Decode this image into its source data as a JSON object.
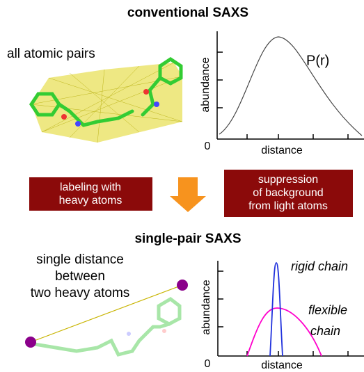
{
  "top": {
    "title": "conventional SAXS",
    "label": "all atomic pairs",
    "plot": {
      "y_label": "abundance",
      "x_label": "distance",
      "origin": "0",
      "curve_label": "P(r)"
    }
  },
  "arrows": {
    "left_box": [
      "labeling with",
      "heavy atoms"
    ],
    "right_box": [
      "suppression",
      "of background",
      "from light atoms"
    ]
  },
  "bottom": {
    "title": "single-pair SAXS",
    "label": [
      "single distance",
      "between",
      "two heavy atoms"
    ],
    "plot": {
      "y_label": "abundance",
      "x_label": "distance",
      "origin": "0",
      "rigid_label": "rigid chain",
      "flexible_label": [
        "flexible",
        "chain"
      ]
    }
  }
}
